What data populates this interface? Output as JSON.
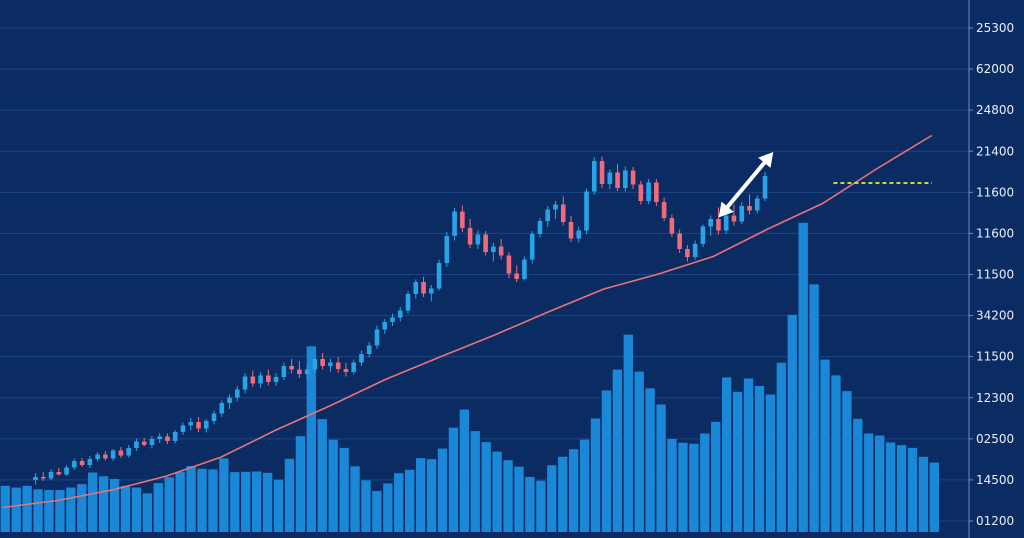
{
  "colors": {
    "background": "#0b2c63",
    "grid": "#1c4585",
    "bullish_candle": "#2aa3e6",
    "bearish_candle": "#ef6b7a",
    "volume_bar": "#1a88d6",
    "moving_average": "#e8737a",
    "resistance_line": "#e8ef2a",
    "arrow": "#ffffff"
  },
  "chart_data": {
    "type": "candlestick",
    "title": "",
    "xlabel": "",
    "ylabel": "",
    "grid": true,
    "price_axis_tick_labels": [
      "25300",
      "62000",
      "24800",
      "21400",
      "11600",
      "11600",
      "11500",
      "34200",
      "11500",
      "12300",
      "02500",
      "14500",
      "01200"
    ],
    "price_scale_units": {
      "min": 0,
      "max": 100
    },
    "ohlc": [
      [
        8.0,
        9.4,
        7.1,
        8.6
      ],
      [
        8.6,
        9.6,
        7.8,
        8.3
      ],
      [
        8.3,
        10.2,
        7.9,
        9.6
      ],
      [
        9.6,
        10.4,
        8.9,
        9.1
      ],
      [
        9.1,
        11.0,
        8.8,
        10.5
      ],
      [
        10.5,
        12.3,
        10.0,
        11.8
      ],
      [
        11.8,
        12.4,
        10.6,
        11.0
      ],
      [
        11.0,
        12.8,
        10.4,
        12.2
      ],
      [
        12.2,
        13.6,
        11.7,
        13.1
      ],
      [
        13.1,
        13.8,
        11.9,
        12.3
      ],
      [
        12.3,
        14.2,
        11.8,
        13.9
      ],
      [
        13.9,
        14.6,
        12.4,
        12.9
      ],
      [
        12.9,
        15.0,
        12.5,
        14.4
      ],
      [
        14.4,
        16.3,
        13.8,
        15.7
      ],
      [
        15.7,
        16.4,
        14.7,
        15.0
      ],
      [
        15.0,
        16.8,
        14.3,
        16.2
      ],
      [
        16.2,
        17.4,
        15.4,
        16.7
      ],
      [
        16.7,
        17.3,
        15.2,
        15.8
      ],
      [
        15.8,
        18.0,
        15.3,
        17.6
      ],
      [
        17.6,
        19.5,
        17.0,
        18.9
      ],
      [
        18.9,
        20.4,
        17.9,
        19.6
      ],
      [
        19.6,
        20.6,
        17.6,
        18.3
      ],
      [
        18.3,
        20.2,
        17.5,
        19.8
      ],
      [
        19.8,
        21.9,
        19.1,
        21.3
      ],
      [
        21.3,
        23.9,
        20.6,
        23.4
      ],
      [
        23.4,
        25.1,
        22.2,
        24.5
      ],
      [
        24.5,
        26.8,
        23.7,
        26.1
      ],
      [
        26.1,
        29.4,
        25.3,
        28.7
      ],
      [
        28.7,
        29.9,
        26.6,
        27.3
      ],
      [
        27.3,
        29.6,
        26.4,
        28.9
      ],
      [
        28.9,
        30.1,
        26.9,
        27.6
      ],
      [
        27.6,
        29.4,
        26.8,
        28.6
      ],
      [
        28.6,
        31.5,
        28.0,
        30.8
      ],
      [
        30.8,
        32.2,
        29.3,
        30.1
      ],
      [
        30.1,
        31.8,
        28.4,
        29.2
      ],
      [
        29.2,
        30.8,
        28.3,
        30.1
      ],
      [
        30.1,
        32.9,
        29.5,
        32.2
      ],
      [
        32.2,
        33.4,
        30.1,
        30.8
      ],
      [
        30.8,
        32.3,
        29.6,
        31.5
      ],
      [
        31.5,
        32.6,
        29.4,
        30.2
      ],
      [
        30.2,
        31.4,
        28.7,
        29.6
      ],
      [
        29.6,
        32.1,
        29.1,
        31.5
      ],
      [
        31.5,
        33.9,
        30.8,
        33.2
      ],
      [
        33.2,
        35.6,
        32.5,
        34.9
      ],
      [
        34.9,
        38.9,
        34.2,
        38.1
      ],
      [
        38.1,
        40.2,
        37.2,
        39.6
      ],
      [
        39.6,
        41.3,
        38.8,
        40.5
      ],
      [
        40.5,
        42.6,
        39.7,
        41.9
      ],
      [
        41.9,
        45.8,
        41.3,
        45.2
      ],
      [
        45.2,
        48.1,
        44.3,
        47.6
      ],
      [
        47.6,
        48.6,
        44.6,
        45.3
      ],
      [
        45.3,
        47.0,
        43.7,
        46.3
      ],
      [
        46.3,
        52.1,
        45.9,
        51.4
      ],
      [
        51.4,
        57.6,
        50.6,
        56.8
      ],
      [
        56.8,
        62.4,
        55.9,
        61.7
      ],
      [
        61.7,
        62.9,
        57.6,
        58.4
      ],
      [
        58.4,
        60.2,
        54.4,
        55.1
      ],
      [
        55.1,
        57.9,
        54.2,
        57.1
      ],
      [
        57.1,
        57.8,
        52.9,
        53.6
      ],
      [
        53.6,
        55.4,
        51.7,
        54.7
      ],
      [
        54.7,
        56.2,
        52.1,
        52.9
      ],
      [
        52.9,
        53.6,
        48.4,
        49.3
      ],
      [
        49.3,
        50.9,
        47.6,
        48.2
      ],
      [
        48.2,
        52.7,
        47.9,
        52.1
      ],
      [
        52.1,
        57.8,
        51.3,
        57.2
      ],
      [
        57.2,
        60.4,
        56.5,
        59.8
      ],
      [
        59.8,
        62.8,
        58.6,
        62.1
      ],
      [
        62.1,
        63.8,
        60.2,
        63.1
      ],
      [
        63.1,
        64.7,
        58.9,
        59.6
      ],
      [
        59.6,
        60.8,
        55.6,
        56.3
      ],
      [
        56.3,
        58.7,
        55.5,
        57.9
      ],
      [
        57.9,
        66.3,
        57.2,
        65.7
      ],
      [
        65.7,
        72.6,
        65.0,
        71.8
      ],
      [
        71.8,
        72.7,
        66.4,
        67.2
      ],
      [
        67.2,
        70.1,
        66.2,
        69.5
      ],
      [
        69.5,
        71.2,
        65.8,
        66.4
      ],
      [
        66.4,
        70.7,
        65.7,
        69.9
      ],
      [
        69.9,
        70.6,
        66.2,
        67.1
      ],
      [
        67.1,
        67.8,
        63.1,
        63.8
      ],
      [
        63.8,
        68.2,
        63.2,
        67.5
      ],
      [
        67.5,
        68.2,
        62.8,
        63.6
      ],
      [
        63.6,
        64.5,
        59.8,
        60.4
      ],
      [
        60.4,
        61.1,
        56.6,
        57.3
      ],
      [
        57.3,
        58.1,
        53.4,
        54.2
      ],
      [
        54.2,
        55.0,
        51.7,
        52.6
      ],
      [
        52.6,
        55.9,
        52.1,
        55.2
      ],
      [
        55.2,
        59.1,
        54.6,
        58.7
      ],
      [
        58.7,
        60.9,
        56.8,
        60.2
      ],
      [
        60.2,
        62.5,
        57.1,
        57.9
      ],
      [
        57.9,
        61.4,
        57.2,
        60.9
      ],
      [
        60.9,
        63.1,
        58.9,
        59.7
      ],
      [
        59.7,
        63.6,
        59.2,
        62.8
      ],
      [
        62.8,
        65.1,
        61.1,
        61.9
      ],
      [
        61.9,
        64.9,
        61.3,
        64.3
      ],
      [
        64.3,
        69.6,
        63.8,
        68.8
      ]
    ],
    "moving_average": [
      [
        0,
        2.5
      ],
      [
        10,
        3.9
      ],
      [
        20,
        6.0
      ],
      [
        30,
        8.8
      ],
      [
        40,
        12.6
      ],
      [
        50,
        18.0
      ],
      [
        60,
        22.9
      ],
      [
        70,
        28.1
      ],
      [
        80,
        32.6
      ],
      [
        90,
        37.0
      ],
      [
        100,
        41.7
      ],
      [
        110,
        46.2
      ],
      [
        120,
        49.2
      ],
      [
        130,
        52.7
      ],
      [
        140,
        58.2
      ],
      [
        150,
        63.3
      ],
      [
        160,
        70.3
      ],
      [
        170,
        76.9
      ]
    ],
    "resistance_level": 67.4,
    "resistance_from_x": 152,
    "volume": [
      [
        0,
        13.5
      ],
      [
        2,
        13.0
      ],
      [
        4,
        13.5
      ],
      [
        6,
        12.5
      ],
      [
        8,
        12.3
      ],
      [
        10,
        12.3
      ],
      [
        12,
        13.0
      ],
      [
        14,
        14.0
      ],
      [
        16,
        17.4
      ],
      [
        18,
        16.3
      ],
      [
        20,
        15.5
      ],
      [
        22,
        13.5
      ],
      [
        24,
        13.0
      ],
      [
        26,
        11.3
      ],
      [
        28,
        14.3
      ],
      [
        30,
        16.0
      ],
      [
        32,
        17.6
      ],
      [
        34,
        19.3
      ],
      [
        36,
        18.5
      ],
      [
        38,
        18.3
      ],
      [
        40,
        21.5
      ],
      [
        42,
        17.5
      ],
      [
        44,
        17.6
      ],
      [
        46,
        17.7
      ],
      [
        48,
        17.3
      ],
      [
        50,
        15.3
      ],
      [
        52,
        21.4
      ],
      [
        54,
        28.0
      ],
      [
        56,
        54.3
      ],
      [
        58,
        33.0
      ],
      [
        60,
        27.0
      ],
      [
        62,
        24.6
      ],
      [
        64,
        19.2
      ],
      [
        66,
        15.1
      ],
      [
        68,
        12.0
      ],
      [
        70,
        14.2
      ],
      [
        72,
        17.2
      ],
      [
        74,
        18.2
      ],
      [
        76,
        21.6
      ],
      [
        78,
        21.3
      ],
      [
        80,
        24.4
      ],
      [
        82,
        30.5
      ],
      [
        84,
        35.8
      ],
      [
        86,
        29.5
      ],
      [
        88,
        26.3
      ],
      [
        90,
        23.5
      ],
      [
        92,
        21.0
      ],
      [
        94,
        19.1
      ],
      [
        96,
        16.1
      ],
      [
        98,
        15.0
      ],
      [
        100,
        19.5
      ],
      [
        102,
        22.0
      ],
      [
        104,
        24.2
      ],
      [
        106,
        27.0
      ],
      [
        108,
        33.2
      ],
      [
        110,
        41.4
      ],
      [
        112,
        47.5
      ],
      [
        114,
        57.7
      ],
      [
        116,
        46.9
      ],
      [
        118,
        42.0
      ],
      [
        120,
        37.3
      ],
      [
        122,
        27.2
      ],
      [
        124,
        26.1
      ],
      [
        126,
        25.8
      ],
      [
        128,
        28.8
      ],
      [
        130,
        32.2
      ],
      [
        132,
        45.2
      ],
      [
        134,
        41.0
      ],
      [
        136,
        44.9
      ],
      [
        138,
        42.7
      ],
      [
        140,
        40.2
      ],
      [
        142,
        49.5
      ],
      [
        144,
        63.5
      ],
      [
        146,
        90.4
      ],
      [
        148,
        72.4
      ],
      [
        150,
        50.4
      ],
      [
        152,
        45.8
      ],
      [
        154,
        41.2
      ],
      [
        156,
        33.1
      ],
      [
        158,
        28.8
      ],
      [
        160,
        28.2
      ],
      [
        162,
        26.2
      ],
      [
        164,
        25.4
      ],
      [
        166,
        24.6
      ],
      [
        168,
        22.0
      ],
      [
        170,
        20.3
      ]
    ],
    "annotation": {
      "type": "double-arrow",
      "from": [
        131,
        60.5
      ],
      "to": [
        141,
        73.6
      ]
    }
  }
}
